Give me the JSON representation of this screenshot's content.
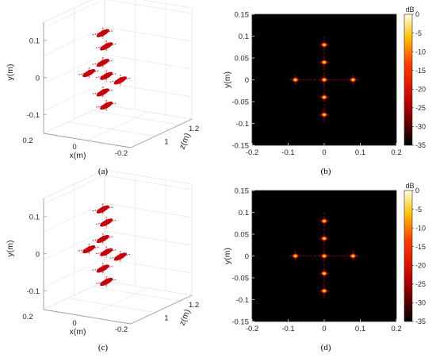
{
  "panels": {
    "a": {
      "label": "(a)"
    },
    "b": {
      "label": "(b)"
    },
    "c": {
      "label": "(c)"
    },
    "d": {
      "label": "(d)"
    }
  },
  "chart_data": [
    {
      "panel": "a",
      "type": "scatter",
      "title": "",
      "view": "3d",
      "xlabel": "x(m)",
      "ylabel": "y(m)",
      "zlabel": "z(m)",
      "xticks": [
        "0.2",
        "0",
        "-0.2"
      ],
      "yticks": [
        "0.1",
        "0",
        "-0.1"
      ],
      "zticks": [
        "1",
        "1.2"
      ],
      "colors": {
        "targets": "#c8000a",
        "grid": "#dcdcdc",
        "axes": "#9a9a9a"
      },
      "points": [
        {
          "x": 0.0,
          "y": 0.12,
          "z": 1.0
        },
        {
          "x": 0.0,
          "y": 0.08,
          "z": 1.0
        },
        {
          "x": 0.0,
          "y": 0.04,
          "z": 1.0
        },
        {
          "x": 0.0,
          "y": 0.0,
          "z": 1.0
        },
        {
          "x": -0.08,
          "y": 0.0,
          "z": 1.0
        },
        {
          "x": 0.08,
          "y": 0.0,
          "z": 1.0
        },
        {
          "x": 0.0,
          "y": -0.04,
          "z": 1.0
        },
        {
          "x": 0.0,
          "y": -0.08,
          "z": 1.0
        }
      ]
    },
    {
      "panel": "b",
      "type": "heatmap",
      "title": "",
      "xlabel": "",
      "ylabel": "y(m)",
      "xlim": [
        -0.2,
        0.2
      ],
      "ylim": [
        -0.15,
        0.15
      ],
      "xticks": [
        "-0.2",
        "-0.1",
        "0",
        "0.1",
        "0.2"
      ],
      "yticks": [
        "0.15",
        "0.1",
        "0.05",
        "0",
        "-0.05",
        "-0.1",
        "-0.15"
      ],
      "colorbar": {
        "unit": "dB",
        "ticks": [
          "0",
          "-5",
          "-10",
          "-15",
          "-20",
          "-25",
          "-30",
          "-35"
        ],
        "min": -35,
        "max": 0
      },
      "points": [
        {
          "x": 0.0,
          "y": 0.08
        },
        {
          "x": 0.0,
          "y": 0.04
        },
        {
          "x": 0.0,
          "y": 0.0
        },
        {
          "x": -0.08,
          "y": 0.0
        },
        {
          "x": 0.08,
          "y": 0.0
        },
        {
          "x": 0.0,
          "y": -0.04
        },
        {
          "x": 0.0,
          "y": -0.08
        }
      ]
    },
    {
      "panel": "c",
      "type": "scatter",
      "title": "",
      "view": "3d",
      "xlabel": "x(m)",
      "ylabel": "y(m)",
      "zlabel": "z(m)",
      "xticks": [
        "0.2",
        "0",
        "-0.2"
      ],
      "yticks": [
        "0.1",
        "0",
        "-0.1"
      ],
      "zticks": [
        "1",
        "1.2"
      ],
      "colors": {
        "targets": "#c8000a",
        "grid": "#dcdcdc",
        "axes": "#9a9a9a"
      },
      "points": [
        {
          "x": 0.0,
          "y": 0.12,
          "z": 1.0
        },
        {
          "x": 0.0,
          "y": 0.08,
          "z": 1.0
        },
        {
          "x": 0.0,
          "y": 0.04,
          "z": 1.0
        },
        {
          "x": 0.0,
          "y": 0.0,
          "z": 1.0
        },
        {
          "x": -0.08,
          "y": 0.0,
          "z": 1.0
        },
        {
          "x": 0.08,
          "y": 0.0,
          "z": 1.0
        },
        {
          "x": 0.0,
          "y": -0.04,
          "z": 1.0
        },
        {
          "x": 0.0,
          "y": -0.08,
          "z": 1.0
        }
      ]
    },
    {
      "panel": "d",
      "type": "heatmap",
      "title": "",
      "xlabel": "",
      "ylabel": "y(m)",
      "xlim": [
        -0.2,
        0.2
      ],
      "ylim": [
        -0.15,
        0.15
      ],
      "xticks": [
        "-0.2",
        "-0.1",
        "0",
        "0.1",
        "0.2"
      ],
      "yticks": [
        "0.15",
        "0.1",
        "0.05",
        "0",
        "-0.05",
        "-0.1",
        "-0.15"
      ],
      "colorbar": {
        "unit": "dB",
        "ticks": [
          "0",
          "-5",
          "-10",
          "-15",
          "-20",
          "-25",
          "-30",
          "-35"
        ],
        "min": -35,
        "max": 0
      },
      "points": [
        {
          "x": 0.0,
          "y": 0.08
        },
        {
          "x": 0.0,
          "y": 0.04
        },
        {
          "x": 0.0,
          "y": 0.0
        },
        {
          "x": -0.08,
          "y": 0.0
        },
        {
          "x": 0.08,
          "y": 0.0
        },
        {
          "x": 0.0,
          "y": -0.04
        },
        {
          "x": 0.0,
          "y": -0.08
        }
      ]
    }
  ]
}
